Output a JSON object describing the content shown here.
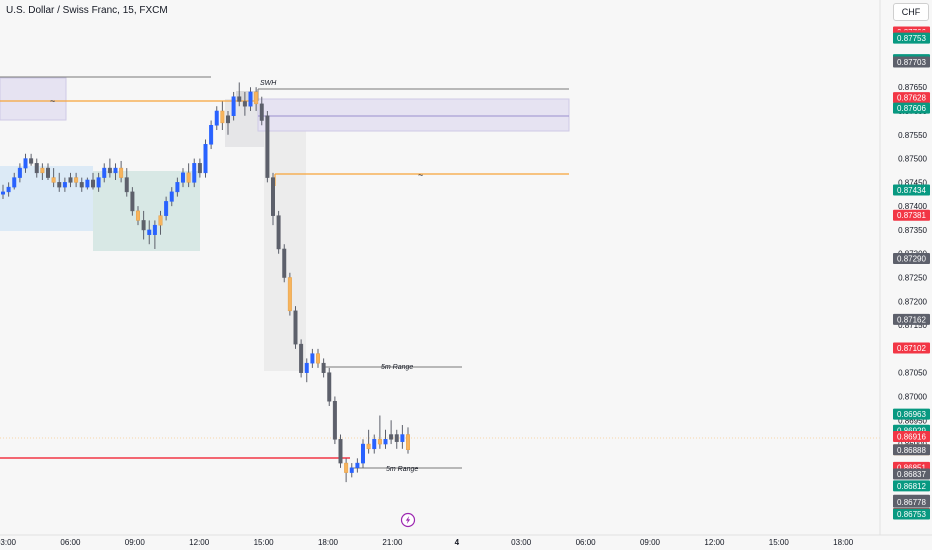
{
  "header": {
    "title": "U.S. Dollar / Swiss Franc, 15, FXCM",
    "currency": "CHF"
  },
  "lightning_icon": "lightning-icon",
  "chart_data": {
    "type": "candlestick",
    "title": "U.S. Dollar / Swiss Franc, 15, FXCM",
    "ylim": [
      0.86753,
      0.87766
    ],
    "x_ticks": [
      "03:00",
      "06:00",
      "09:00",
      "12:00",
      "15:00",
      "18:00",
      "21:00",
      "4",
      "03:00",
      "06:00",
      "09:00",
      "12:00",
      "15:00",
      "18:00"
    ],
    "y_ticks": [
      "0.87650",
      "0.87600",
      "0.87550",
      "0.87500",
      "0.87450",
      "0.87400",
      "0.87350",
      "0.87300",
      "0.87250",
      "0.87200",
      "0.87150",
      "0.87100",
      "0.87050",
      "0.87000",
      "0.86950",
      "0.86900"
    ],
    "price_labels": [
      {
        "text": "0.87766",
        "color": "#f23645"
      },
      {
        "text": "0.87758",
        "color": "#f23645"
      },
      {
        "text": "0.87753",
        "color": "#089981"
      },
      {
        "text": "0.87708",
        "color": "#089981"
      },
      {
        "text": "0.87703",
        "color": "#5d606b"
      },
      {
        "text": "0.87628",
        "color": "#f23645"
      },
      {
        "text": "0.87606",
        "color": "#089981"
      },
      {
        "text": "0.87434",
        "color": "#089981"
      },
      {
        "text": "0.87381",
        "color": "#f23645"
      },
      {
        "text": "0.87290",
        "color": "#5d606b"
      },
      {
        "text": "0.87162",
        "color": "#5d606b"
      },
      {
        "text": "0.87102",
        "color": "#f23645"
      },
      {
        "text": "0.86963",
        "color": "#089981"
      },
      {
        "text": "0.86929",
        "color": "#089981"
      },
      {
        "text": "0.86916",
        "color": "#f23645"
      },
      {
        "text": "0.86888",
        "color": "#f7b45c"
      },
      {
        "text": "0.86888",
        "color": "#5d606b"
      },
      {
        "text": "0.86851",
        "color": "#f23645"
      },
      {
        "text": "0.86837",
        "color": "#5d606b"
      },
      {
        "text": "0.86812",
        "color": "#089981"
      },
      {
        "text": "0.86782",
        "color": "#5d606b"
      },
      {
        "text": "0.86778",
        "color": "#5d606b"
      },
      {
        "text": "0.86754",
        "color": "#f23645"
      },
      {
        "text": "0.86753",
        "color": "#089981"
      }
    ],
    "annotations": [
      "SWH",
      "5m Range",
      "5m Range",
      "~",
      "~"
    ],
    "colors": {
      "up": "#5d606b",
      "down": "#2962ff",
      "highlight": "#f7b45c",
      "resistance": "#f23645"
    },
    "candles": [
      {
        "o": 0.87425,
        "h": 0.87445,
        "l": 0.87415,
        "c": 0.8743,
        "k": "down"
      },
      {
        "o": 0.8743,
        "h": 0.8745,
        "l": 0.8742,
        "c": 0.8744,
        "k": "down"
      },
      {
        "o": 0.8744,
        "h": 0.8747,
        "l": 0.87435,
        "c": 0.8746,
        "k": "down"
      },
      {
        "o": 0.8746,
        "h": 0.8749,
        "l": 0.8745,
        "c": 0.8748,
        "k": "down"
      },
      {
        "o": 0.8748,
        "h": 0.8751,
        "l": 0.8747,
        "c": 0.875,
        "k": "down"
      },
      {
        "o": 0.875,
        "h": 0.8751,
        "l": 0.87485,
        "c": 0.8749,
        "k": "up"
      },
      {
        "o": 0.8749,
        "h": 0.875,
        "l": 0.8746,
        "c": 0.8747,
        "k": "up"
      },
      {
        "o": 0.8747,
        "h": 0.8749,
        "l": 0.87455,
        "c": 0.8748,
        "k": "highlight"
      },
      {
        "o": 0.8748,
        "h": 0.8749,
        "l": 0.87455,
        "c": 0.8746,
        "k": "up"
      },
      {
        "o": 0.8746,
        "h": 0.8748,
        "l": 0.8744,
        "c": 0.8745,
        "k": "highlight"
      },
      {
        "o": 0.8745,
        "h": 0.8747,
        "l": 0.8743,
        "c": 0.8744,
        "k": "up"
      },
      {
        "o": 0.8744,
        "h": 0.8746,
        "l": 0.8743,
        "c": 0.8745,
        "k": "down"
      },
      {
        "o": 0.8745,
        "h": 0.8747,
        "l": 0.8744,
        "c": 0.8746,
        "k": "up"
      },
      {
        "o": 0.8746,
        "h": 0.8747,
        "l": 0.8744,
        "c": 0.8745,
        "k": "highlight"
      },
      {
        "o": 0.8745,
        "h": 0.8746,
        "l": 0.8743,
        "c": 0.8744,
        "k": "up"
      },
      {
        "o": 0.8744,
        "h": 0.8746,
        "l": 0.87435,
        "c": 0.87455,
        "k": "down"
      },
      {
        "o": 0.87455,
        "h": 0.8747,
        "l": 0.87435,
        "c": 0.8744,
        "k": "up"
      },
      {
        "o": 0.8744,
        "h": 0.8747,
        "l": 0.8743,
        "c": 0.8746,
        "k": "down"
      },
      {
        "o": 0.8746,
        "h": 0.8749,
        "l": 0.8745,
        "c": 0.8748,
        "k": "down"
      },
      {
        "o": 0.8748,
        "h": 0.875,
        "l": 0.8746,
        "c": 0.8747,
        "k": "up"
      },
      {
        "o": 0.8747,
        "h": 0.8749,
        "l": 0.87455,
        "c": 0.8748,
        "k": "down"
      },
      {
        "o": 0.8748,
        "h": 0.87495,
        "l": 0.8745,
        "c": 0.8746,
        "k": "highlight"
      },
      {
        "o": 0.8746,
        "h": 0.8748,
        "l": 0.8742,
        "c": 0.8743,
        "k": "up"
      },
      {
        "o": 0.8743,
        "h": 0.8744,
        "l": 0.8738,
        "c": 0.8739,
        "k": "up"
      },
      {
        "o": 0.8739,
        "h": 0.874,
        "l": 0.8736,
        "c": 0.8737,
        "k": "highlight"
      },
      {
        "o": 0.8737,
        "h": 0.8739,
        "l": 0.8733,
        "c": 0.8735,
        "k": "up"
      },
      {
        "o": 0.8735,
        "h": 0.8737,
        "l": 0.8732,
        "c": 0.8734,
        "k": "down"
      },
      {
        "o": 0.8734,
        "h": 0.8737,
        "l": 0.8731,
        "c": 0.8736,
        "k": "down"
      },
      {
        "o": 0.8736,
        "h": 0.8739,
        "l": 0.8734,
        "c": 0.8738,
        "k": "highlight"
      },
      {
        "o": 0.8738,
        "h": 0.8742,
        "l": 0.8737,
        "c": 0.8741,
        "k": "down"
      },
      {
        "o": 0.8741,
        "h": 0.8744,
        "l": 0.874,
        "c": 0.8743,
        "k": "down"
      },
      {
        "o": 0.8743,
        "h": 0.8746,
        "l": 0.8742,
        "c": 0.8745,
        "k": "down"
      },
      {
        "o": 0.8745,
        "h": 0.8748,
        "l": 0.8744,
        "c": 0.8747,
        "k": "down"
      },
      {
        "o": 0.8747,
        "h": 0.8749,
        "l": 0.8744,
        "c": 0.8745,
        "k": "highlight"
      },
      {
        "o": 0.8745,
        "h": 0.875,
        "l": 0.8744,
        "c": 0.8749,
        "k": "down"
      },
      {
        "o": 0.8749,
        "h": 0.875,
        "l": 0.8746,
        "c": 0.8747,
        "k": "up"
      },
      {
        "o": 0.8747,
        "h": 0.8754,
        "l": 0.8746,
        "c": 0.8753,
        "k": "down"
      },
      {
        "o": 0.8753,
        "h": 0.8758,
        "l": 0.8752,
        "c": 0.8757,
        "k": "down"
      },
      {
        "o": 0.8757,
        "h": 0.8761,
        "l": 0.8756,
        "c": 0.876,
        "k": "down"
      },
      {
        "o": 0.876,
        "h": 0.8762,
        "l": 0.8756,
        "c": 0.87575,
        "k": "highlight"
      },
      {
        "o": 0.87575,
        "h": 0.876,
        "l": 0.8755,
        "c": 0.8759,
        "k": "up"
      },
      {
        "o": 0.8759,
        "h": 0.8764,
        "l": 0.8758,
        "c": 0.8763,
        "k": "down"
      },
      {
        "o": 0.8763,
        "h": 0.8766,
        "l": 0.8761,
        "c": 0.8762,
        "k": "up"
      },
      {
        "o": 0.8762,
        "h": 0.8764,
        "l": 0.8759,
        "c": 0.8761,
        "k": "up"
      },
      {
        "o": 0.8761,
        "h": 0.8765,
        "l": 0.876,
        "c": 0.8764,
        "k": "down"
      },
      {
        "o": 0.8764,
        "h": 0.8765,
        "l": 0.876,
        "c": 0.87615,
        "k": "highlight"
      },
      {
        "o": 0.87615,
        "h": 0.8763,
        "l": 0.8757,
        "c": 0.8758,
        "k": "up"
      },
      {
        "o": 0.8759,
        "h": 0.876,
        "l": 0.8745,
        "c": 0.8746,
        "k": "up"
      },
      {
        "o": 0.8746,
        "h": 0.8747,
        "l": 0.8736,
        "c": 0.8738,
        "k": "up"
      },
      {
        "o": 0.8738,
        "h": 0.8739,
        "l": 0.873,
        "c": 0.8731,
        "k": "up"
      },
      {
        "o": 0.8731,
        "h": 0.8732,
        "l": 0.8724,
        "c": 0.8725,
        "k": "up"
      },
      {
        "o": 0.8725,
        "h": 0.8726,
        "l": 0.8717,
        "c": 0.8718,
        "k": "highlight"
      },
      {
        "o": 0.8718,
        "h": 0.8719,
        "l": 0.871,
        "c": 0.8711,
        "k": "up"
      },
      {
        "o": 0.8711,
        "h": 0.8712,
        "l": 0.8704,
        "c": 0.8705,
        "k": "up"
      },
      {
        "o": 0.8705,
        "h": 0.8708,
        "l": 0.8703,
        "c": 0.8707,
        "k": "down"
      },
      {
        "o": 0.8707,
        "h": 0.871,
        "l": 0.8706,
        "c": 0.8709,
        "k": "down"
      },
      {
        "o": 0.8709,
        "h": 0.871,
        "l": 0.8706,
        "c": 0.8707,
        "k": "highlight"
      },
      {
        "o": 0.8707,
        "h": 0.8708,
        "l": 0.8704,
        "c": 0.8705,
        "k": "up"
      },
      {
        "o": 0.8705,
        "h": 0.8706,
        "l": 0.8698,
        "c": 0.8699,
        "k": "up"
      },
      {
        "o": 0.8699,
        "h": 0.87,
        "l": 0.869,
        "c": 0.8691,
        "k": "up"
      },
      {
        "o": 0.8691,
        "h": 0.8692,
        "l": 0.8685,
        "c": 0.8686,
        "k": "up"
      },
      {
        "o": 0.8686,
        "h": 0.8687,
        "l": 0.8682,
        "c": 0.8684,
        "k": "highlight"
      },
      {
        "o": 0.8684,
        "h": 0.8686,
        "l": 0.8683,
        "c": 0.8685,
        "k": "down"
      },
      {
        "o": 0.8685,
        "h": 0.8687,
        "l": 0.8684,
        "c": 0.8686,
        "k": "down"
      },
      {
        "o": 0.8686,
        "h": 0.8691,
        "l": 0.8685,
        "c": 0.869,
        "k": "down"
      },
      {
        "o": 0.869,
        "h": 0.8693,
        "l": 0.8688,
        "c": 0.8689,
        "k": "highlight"
      },
      {
        "o": 0.8689,
        "h": 0.8692,
        "l": 0.8688,
        "c": 0.8691,
        "k": "down"
      },
      {
        "o": 0.8691,
        "h": 0.8696,
        "l": 0.8689,
        "c": 0.869,
        "k": "highlight"
      },
      {
        "o": 0.869,
        "h": 0.8693,
        "l": 0.8689,
        "c": 0.8691,
        "k": "down"
      },
      {
        "o": 0.8691,
        "h": 0.8695,
        "l": 0.869,
        "c": 0.8692,
        "k": "up"
      },
      {
        "o": 0.8692,
        "h": 0.8693,
        "l": 0.8689,
        "c": 0.86905,
        "k": "up"
      },
      {
        "o": 0.86905,
        "h": 0.8694,
        "l": 0.8689,
        "c": 0.8692,
        "k": "down"
      },
      {
        "o": 0.8692,
        "h": 0.86935,
        "l": 0.8688,
        "c": 0.86888,
        "k": "highlight"
      }
    ]
  }
}
